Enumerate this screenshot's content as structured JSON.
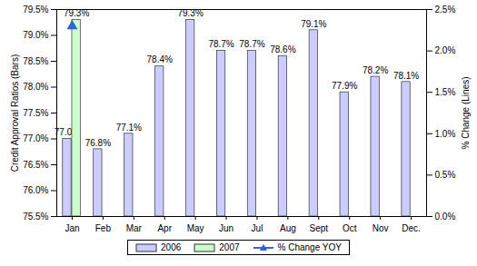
{
  "chart_data": {
    "type": "bar",
    "categories": [
      "Jan",
      "Feb",
      "Mar",
      "Apr",
      "May",
      "Jun",
      "Jul",
      "Aug",
      "Sept",
      "Oct",
      "Nov",
      "Dec."
    ],
    "series": [
      {
        "name": "2006",
        "color": "#ccccff",
        "values": [
          77.0,
          76.8,
          77.1,
          78.4,
          79.3,
          78.7,
          78.7,
          78.6,
          79.1,
          77.9,
          78.2,
          78.1
        ],
        "value_labels": [
          "77.0%",
          "76.8%",
          "77.1%",
          "78.4%",
          "79.3%",
          "78.7%",
          "78.7%",
          "78.6%",
          "79.1%",
          "77.9%",
          "78.2%",
          "78.1%"
        ]
      },
      {
        "name": "2007",
        "color": "#ccffcc",
        "values": [
          79.3,
          null,
          null,
          null,
          null,
          null,
          null,
          null,
          null,
          null,
          null,
          null
        ],
        "value_labels": [
          "79.3%",
          null,
          null,
          null,
          null,
          null,
          null,
          null,
          null,
          null,
          null,
          null
        ]
      },
      {
        "name": "% Change YOY",
        "color": "#3366cc",
        "type": "line",
        "axis": "y2",
        "marker": "triangle",
        "values": [
          2.3,
          null,
          null,
          null,
          null,
          null,
          null,
          null,
          null,
          null,
          null,
          null
        ]
      }
    ],
    "y_label": "Credit Approval Ratios (Bars)",
    "y2_label": "% Change (Lines)",
    "ylim": [
      75.5,
      79.5
    ],
    "yticks": [
      {
        "value": 75.5,
        "label": "75.5%"
      },
      {
        "value": 76.0,
        "label": "76.0%"
      },
      {
        "value": 76.5,
        "label": "76.5%"
      },
      {
        "value": 77.0,
        "label": "77.0%"
      },
      {
        "value": 77.5,
        "label": "77.5%"
      },
      {
        "value": 78.0,
        "label": "78.0%"
      },
      {
        "value": 78.5,
        "label": "78.5%"
      },
      {
        "value": 79.0,
        "label": "79.0%"
      },
      {
        "value": 79.5,
        "label": "79.5%"
      }
    ],
    "y2lim": [
      0,
      2.5
    ],
    "y2ticks": [
      {
        "value": 0,
        "label": "0.0%"
      },
      {
        "value": 0.5,
        "label": "0.5%"
      },
      {
        "value": 1.0,
        "label": "1.0%"
      },
      {
        "value": 1.5,
        "label": "1.5%"
      },
      {
        "value": 2.0,
        "label": "2.0%"
      },
      {
        "value": 2.5,
        "label": "2.5%"
      }
    ],
    "data_labels": true,
    "grid": false,
    "legend": "bottom"
  }
}
